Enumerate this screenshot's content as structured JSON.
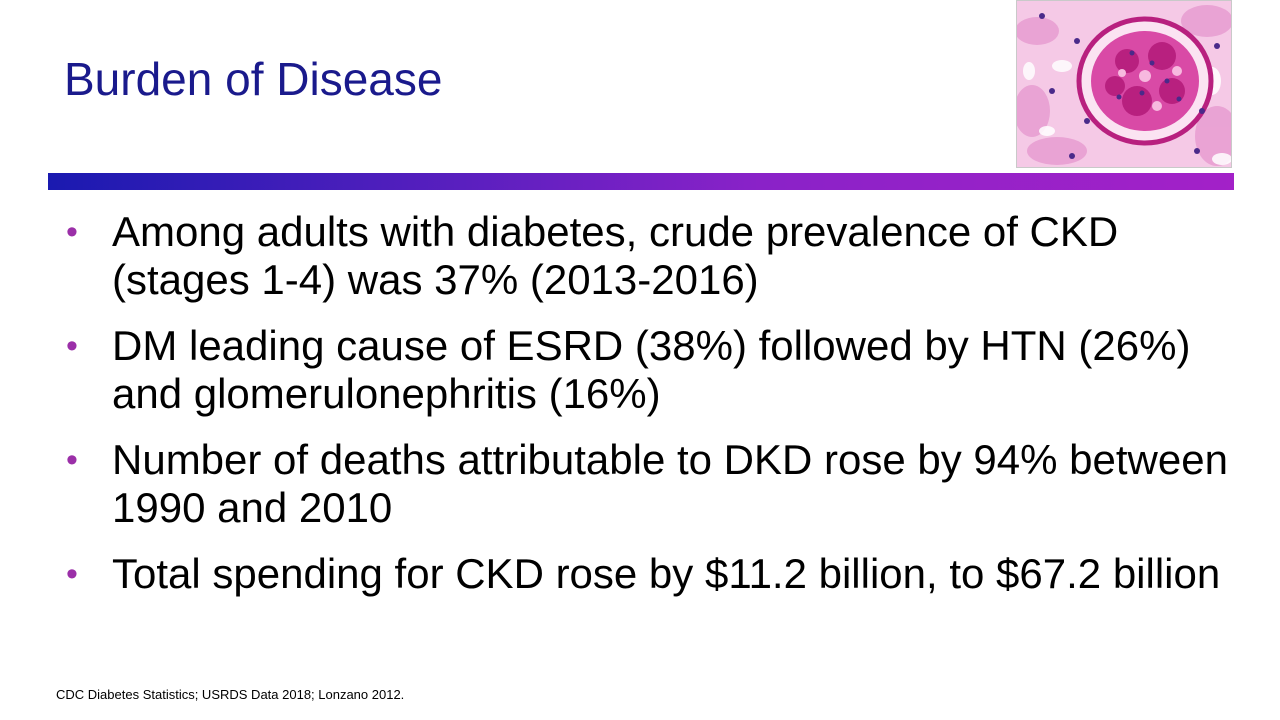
{
  "slide": {
    "title": "Burden of Disease",
    "image": {
      "description_icon": "glomerulus-micrograph-icon",
      "colors": [
        "#e060b0",
        "#f3b7de",
        "#b8207f",
        "#f7d6ec"
      ]
    },
    "rule_colors": [
      "#1a1ab0",
      "#a321c8"
    ],
    "bullet_marker": "•",
    "bullet_marker_color": "#9b2fa8",
    "bullets": [
      {
        "text": "Among adults with diabetes, crude prevalence of CKD (stages 1-4) was 37% (2013-2016)"
      },
      {
        "text": "DM leading cause of ESRD (38%) followed by HTN (26%) and glomerulonephritis (16%)"
      },
      {
        "text": "Number of deaths attributable to DKD rose by 94% between 1990 and 2010"
      },
      {
        "text": "Total spending for CKD rose by $11.2 billion, to $67.2 billion"
      }
    ],
    "source": "CDC Diabetes Statistics; USRDS Data 2018; Lonzano 2012."
  }
}
